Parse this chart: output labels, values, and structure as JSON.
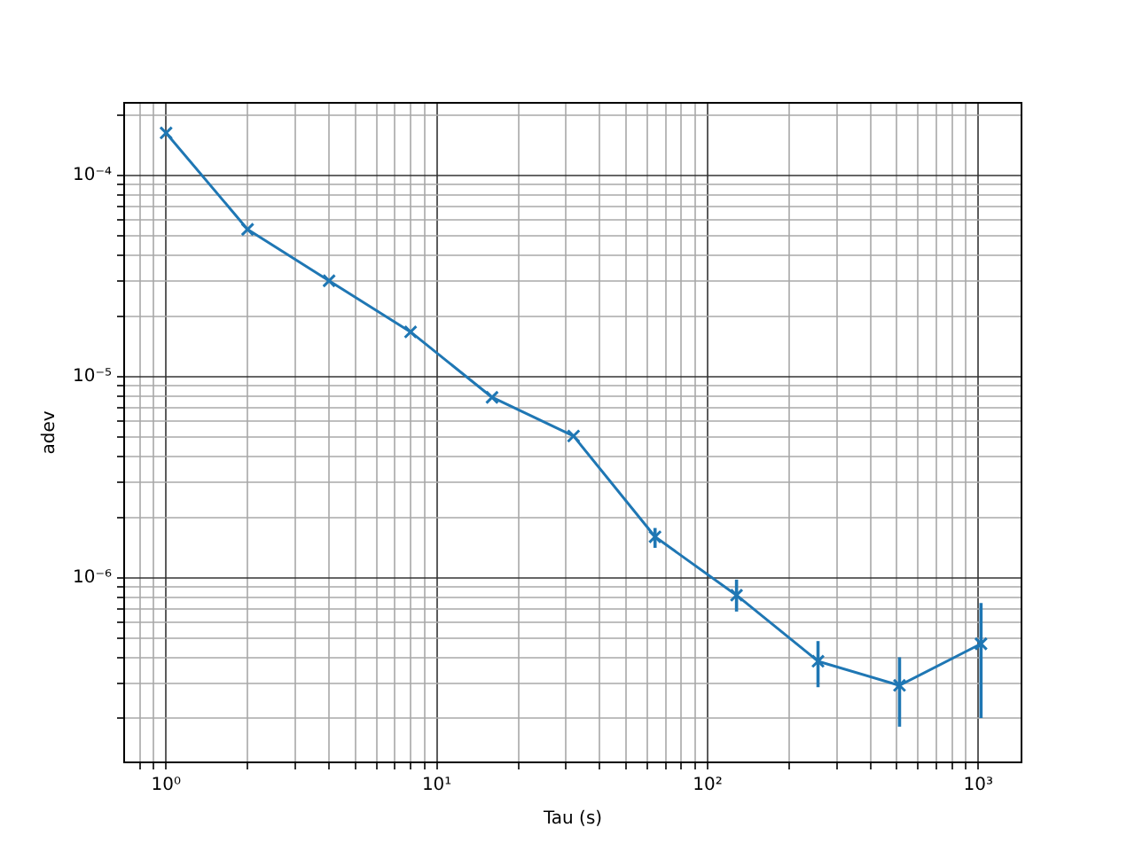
{
  "chart_data": {
    "type": "line",
    "xlabel": "Tau (s)",
    "ylabel": "adev",
    "x": [
      1,
      2,
      4,
      8,
      16,
      32,
      64,
      128,
      256,
      512,
      1024
    ],
    "series": [
      {
        "color": "#1f77b4",
        "values": [
          0.000163,
          5.4e-05,
          3e-05,
          1.67e-05,
          7.9e-06,
          5.07e-06,
          1.6e-06,
          8.2e-07,
          3.85e-07,
          2.92e-07,
          4.7e-07
        ],
        "errors": [
          null,
          null,
          null,
          null,
          null,
          null,
          [
            1.41e-06,
            1.77e-06
          ],
          [
            6.8e-07,
            9.8e-07
          ],
          [
            2.86e-07,
            4.85e-07
          ],
          [
            1.82e-07,
            4.03e-07
          ],
          [
            2.01e-07,
            7.5e-07
          ]
        ]
      }
    ],
    "log": "xy",
    "grid": true,
    "marker": "cross",
    "line_style": "solid",
    "xlim": [
      0.713,
      1445
    ],
    "ylim": [
      1.21e-07,
      0.00023
    ],
    "xticks": [
      {
        "value": 0.8,
        "label": null
      },
      {
        "value": 0.9,
        "label": null
      },
      {
        "value": 1,
        "label": "10⁰"
      },
      {
        "value": 2,
        "label": null
      },
      {
        "value": 3,
        "label": null
      },
      {
        "value": 4,
        "label": null
      },
      {
        "value": 5,
        "label": null
      },
      {
        "value": 6,
        "label": null
      },
      {
        "value": 7,
        "label": null
      },
      {
        "value": 8,
        "label": null
      },
      {
        "value": 9,
        "label": null
      },
      {
        "value": 10,
        "label": "10¹"
      },
      {
        "value": 20,
        "label": null
      },
      {
        "value": 30,
        "label": null
      },
      {
        "value": 40,
        "label": null
      },
      {
        "value": 50,
        "label": null
      },
      {
        "value": 60,
        "label": null
      },
      {
        "value": 70,
        "label": null
      },
      {
        "value": 80,
        "label": null
      },
      {
        "value": 90,
        "label": null
      },
      {
        "value": 100,
        "label": "10²"
      },
      {
        "value": 200,
        "label": null
      },
      {
        "value": 300,
        "label": null
      },
      {
        "value": 400,
        "label": null
      },
      {
        "value": 500,
        "label": null
      },
      {
        "value": 600,
        "label": null
      },
      {
        "value": 700,
        "label": null
      },
      {
        "value": 800,
        "label": null
      },
      {
        "value": 900,
        "label": null
      },
      {
        "value": 1000,
        "label": "10³"
      }
    ],
    "yticks": [
      {
        "value": 2e-07,
        "label": null
      },
      {
        "value": 3e-07,
        "label": null
      },
      {
        "value": 4e-07,
        "label": null
      },
      {
        "value": 5e-07,
        "label": null
      },
      {
        "value": 6e-07,
        "label": null
      },
      {
        "value": 7e-07,
        "label": null
      },
      {
        "value": 8e-07,
        "label": null
      },
      {
        "value": 9e-07,
        "label": null
      },
      {
        "value": 1e-06,
        "label": "10⁻⁶"
      },
      {
        "value": 2e-06,
        "label": null
      },
      {
        "value": 3e-06,
        "label": null
      },
      {
        "value": 4e-06,
        "label": null
      },
      {
        "value": 5e-06,
        "label": null
      },
      {
        "value": 6e-06,
        "label": null
      },
      {
        "value": 7e-06,
        "label": null
      },
      {
        "value": 8e-06,
        "label": null
      },
      {
        "value": 9e-06,
        "label": null
      },
      {
        "value": 1e-05,
        "label": "10⁻⁵"
      },
      {
        "value": 2e-05,
        "label": null
      },
      {
        "value": 3e-05,
        "label": null
      },
      {
        "value": 4e-05,
        "label": null
      },
      {
        "value": 5e-05,
        "label": null
      },
      {
        "value": 6e-05,
        "label": null
      },
      {
        "value": 7e-05,
        "label": null
      },
      {
        "value": 8e-05,
        "label": null
      },
      {
        "value": 9e-05,
        "label": null
      },
      {
        "value": 0.0001,
        "label": "10⁻⁴"
      },
      {
        "value": 0.0002,
        "label": null
      }
    ]
  }
}
